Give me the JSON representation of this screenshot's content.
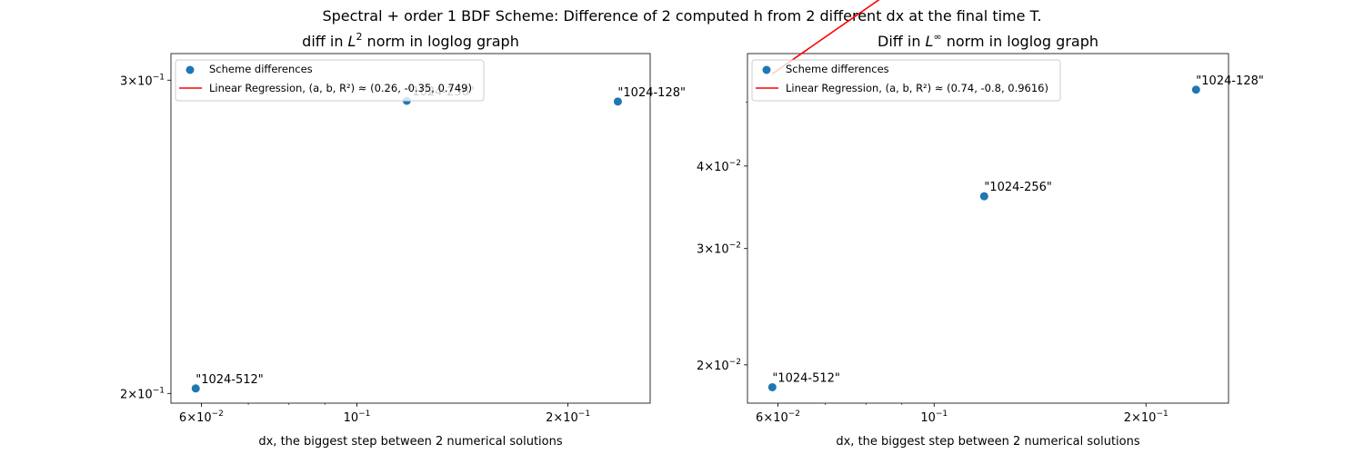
{
  "figure": {
    "suptitle": "Spectral + order 1 BDF Scheme: Difference of 2 computed h from 2 different dx at the final time T."
  },
  "chart_data": [
    {
      "type": "scatter",
      "title_text": "diff in ",
      "title_math": "L",
      "title_sup": "2",
      "title_rest": " norm in loglog graph",
      "xlabel": "dx, the biggest step between 2 numerical solutions",
      "xscale": "log",
      "yscale": "log",
      "xlim": [
        0.0543,
        0.262
      ],
      "ylim": [
        0.1975,
        0.3105
      ],
      "xticks": [
        {
          "value": 0.06,
          "base": "6×10",
          "exp": "−2"
        },
        {
          "value": 0.1,
          "base": "10",
          "exp": "−1"
        },
        {
          "value": 0.2,
          "base": "2×10",
          "exp": "−1"
        }
      ],
      "yticks": [
        {
          "value": 0.2,
          "base": "2×10",
          "exp": "−1"
        },
        {
          "value": 0.3,
          "base": "3×10",
          "exp": "−1"
        }
      ],
      "series": [
        {
          "name": "Scheme differences",
          "points": [
            {
              "x": 0.0589,
              "y": 0.2013,
              "label": "\"1024-512\""
            },
            {
              "x": 0.1178,
              "y": 0.2921,
              "label": "\"1024-256\""
            },
            {
              "x": 0.2356,
              "y": 0.2918,
              "label": "\"1024-128\""
            }
          ],
          "color": "#1f77b4"
        }
      ],
      "regression": {
        "name": "Linear Regression, (a, b, R²) ≈ (0.26, -0.35, 0.749)",
        "a": 0.2585,
        "b": -0.3507,
        "x_start": 0.0589,
        "x_end": 0.2356,
        "color": "#ff0000"
      },
      "legend_position": "upper-left"
    },
    {
      "type": "scatter",
      "title_text": "Diff in ",
      "title_math": "L",
      "title_sup": "∞",
      "title_rest": " norm in loglog graph",
      "xlabel": "dx, the biggest step between 2 numerical solutions",
      "xscale": "log",
      "yscale": "log",
      "xlim": [
        0.0543,
        0.262
      ],
      "ylim": [
        0.0175,
        0.0592
      ],
      "xticks": [
        {
          "value": 0.06,
          "base": "6×10",
          "exp": "−2"
        },
        {
          "value": 0.1,
          "base": "10",
          "exp": "−1"
        },
        {
          "value": 0.2,
          "base": "2×10",
          "exp": "−1"
        }
      ],
      "yticks": [
        {
          "value": 0.02,
          "base": "2×10",
          "exp": "−2"
        },
        {
          "value": 0.03,
          "base": "3×10",
          "exp": "−2"
        },
        {
          "value": 0.04,
          "base": "4×10",
          "exp": "−2"
        }
      ],
      "series": [
        {
          "name": "Scheme differences",
          "points": [
            {
              "x": 0.0589,
              "y": 0.0185,
              "label": "\"1024-512\""
            },
            {
              "x": 0.1178,
              "y": 0.036,
              "label": "\"1024-256\""
            },
            {
              "x": 0.2356,
              "y": 0.0522,
              "label": "\"1024-128\""
            }
          ],
          "color": "#1f77b4"
        }
      ],
      "regression": {
        "name": "Linear Regression, (a, b, R²) ≈ (0.74, -0.8, 0.9616)",
        "a": 0.74,
        "b": -0.8018,
        "x_start": 0.0589,
        "x_end": 0.2356,
        "color": "#ff0000"
      },
      "legend_position": "upper-left"
    }
  ]
}
